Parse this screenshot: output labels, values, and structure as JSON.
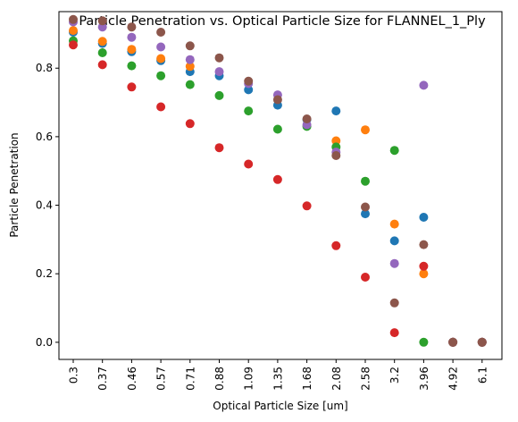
{
  "chart_data": {
    "type": "scatter",
    "title": "Particle Penetration vs. Optical Particle Size for FLANNEL_1_Ply",
    "xlabel": "Optical Particle Size [um]",
    "ylabel": "Particle Penetration",
    "categories": [
      "0.3",
      "0.37",
      "0.46",
      "0.57",
      "0.71",
      "0.88",
      "1.09",
      "1.35",
      "1.68",
      "2.08",
      "2.58",
      "3.2",
      "3.96",
      "4.92",
      "6.1"
    ],
    "ylim": [
      -0.05,
      0.965
    ],
    "yticks": [
      "0.0",
      "0.2",
      "0.4",
      "0.6",
      "0.8"
    ],
    "grid": false,
    "series": [
      {
        "color": "#1f77b4",
        "values": [
          0.905,
          0.872,
          0.848,
          0.822,
          0.79,
          0.778,
          0.737,
          0.692,
          0.65,
          0.675,
          0.375,
          0.296,
          0.365,
          0.0,
          0.0
        ]
      },
      {
        "color": "#ff7f0e",
        "values": [
          0.91,
          0.878,
          0.855,
          0.828,
          0.805,
          null,
          null,
          null,
          null,
          0.588,
          0.62,
          0.345,
          0.2,
          0.0,
          0.0
        ]
      },
      {
        "color": "#2ca02c",
        "values": [
          0.88,
          0.845,
          0.807,
          0.778,
          0.752,
          0.72,
          0.675,
          0.622,
          0.63,
          0.57,
          0.47,
          0.56,
          0.0,
          0.0,
          0.0
        ]
      },
      {
        "color": "#d62728",
        "values": [
          0.868,
          0.81,
          0.745,
          0.687,
          0.638,
          0.568,
          0.52,
          0.475,
          0.398,
          0.282,
          0.19,
          0.028,
          0.222,
          0.0,
          0.0
        ]
      },
      {
        "color": "#9467bd",
        "values": [
          0.935,
          0.92,
          0.89,
          0.862,
          0.825,
          0.79,
          0.755,
          0.722,
          0.635,
          0.555,
          null,
          0.23,
          0.75,
          0.0,
          0.0
        ]
      },
      {
        "color": "#8c564b",
        "values": [
          0.942,
          0.938,
          0.92,
          0.905,
          0.865,
          0.83,
          0.762,
          0.708,
          0.652,
          0.545,
          0.395,
          0.115,
          0.285,
          0.0,
          0.0
        ]
      }
    ]
  }
}
